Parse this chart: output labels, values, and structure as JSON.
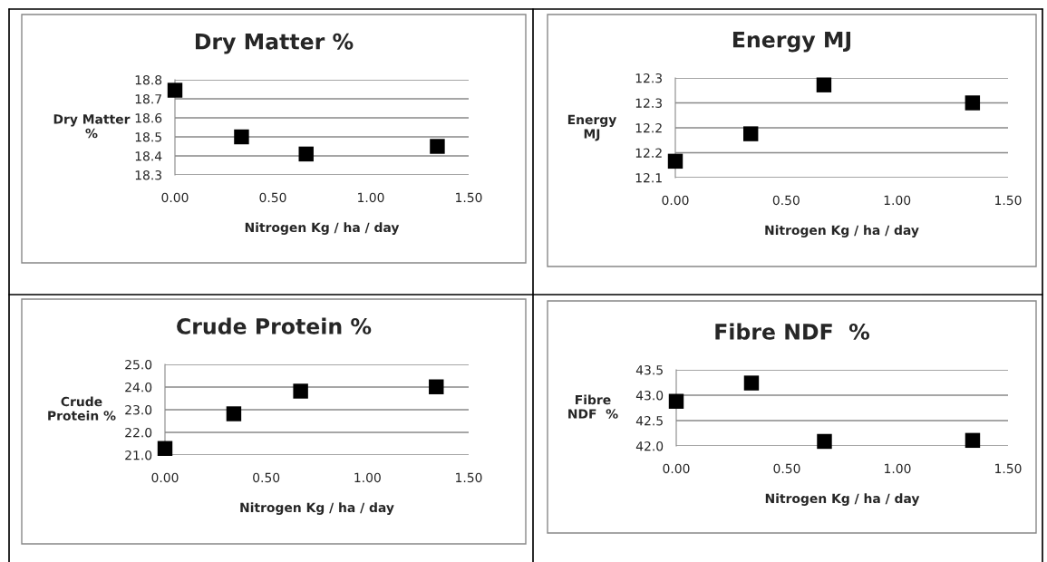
{
  "chart_data": [
    {
      "type": "scatter",
      "title": "Dry Matter %",
      "xlabel": "Nitrogen Kg / ha / day",
      "ylabel": "Dry Matter\n%",
      "x": [
        0,
        0.34,
        0.67,
        1.34
      ],
      "series": [
        {
          "color": "#000000",
          "values": [
            18.745,
            18.5,
            18.41,
            18.45
          ]
        }
      ],
      "xlim": [
        0,
        1.5
      ],
      "xticks": [
        {
          "value": 0,
          "label": "0.00"
        },
        {
          "value": 0.5,
          "label": "0.50"
        },
        {
          "value": 1,
          "label": "1.00"
        },
        {
          "value": 1.5,
          "label": "1.50"
        }
      ],
      "ylim": [
        18.3,
        18.8
      ],
      "yticks": [
        18.3,
        18.4,
        18.5,
        18.6,
        18.7,
        18.8
      ],
      "grid": "y",
      "marker": "square"
    },
    {
      "type": "scatter",
      "title": "Energy MJ",
      "xlabel": "Nitrogen Kg / ha / day",
      "ylabel": "Energy\nMJ",
      "x": [
        0,
        0.34,
        0.67,
        1.34
      ],
      "series": [
        {
          "color": "#000000",
          "values": [
            12.133,
            12.188,
            12.286,
            12.25
          ]
        }
      ],
      "xlim": [
        0,
        1.5
      ],
      "xticks": [
        {
          "value": 0,
          "label": "0.00"
        },
        {
          "value": 0.5,
          "label": "0.50"
        },
        {
          "value": 1,
          "label": "1.00"
        },
        {
          "value": 1.5,
          "label": "1.50"
        }
      ],
      "ylim": [
        12.1,
        12.3
      ],
      "yticks": [
        12.1,
        {
          "value": 12.15,
          "label": "12.2"
        },
        12.2,
        {
          "value": 12.25,
          "label": "12.3"
        },
        12.3
      ],
      "grid": "y",
      "marker": "square"
    },
    {
      "type": "scatter",
      "title": "Crude Protein %",
      "xlabel": "Nitrogen Kg / ha / day",
      "ylabel": "Crude\nProtein %",
      "x": [
        0,
        0.34,
        0.67,
        1.34
      ],
      "series": [
        {
          "color": "#000000",
          "values": [
            21.29,
            22.82,
            23.82,
            24.01
          ]
        }
      ],
      "xlim": [
        0,
        1.5
      ],
      "xticks": [
        {
          "value": 0,
          "label": "0.00"
        },
        {
          "value": 0.5,
          "label": "0.50"
        },
        {
          "value": 1,
          "label": "1.00"
        },
        {
          "value": 1.5,
          "label": "1.50"
        }
      ],
      "ylim": [
        21,
        25
      ],
      "yticks": [
        {
          "value": 21,
          "label": "21.0"
        },
        {
          "value": 22,
          "label": "22.0"
        },
        {
          "value": 23,
          "label": "23.0"
        },
        {
          "value": 24,
          "label": "24.0"
        },
        {
          "value": 25,
          "label": "25.0"
        }
      ],
      "grid": "y",
      "marker": "square"
    },
    {
      "type": "scatter",
      "title": "Fibre NDF  %",
      "xlabel": "Nitrogen Kg / ha / day",
      "ylabel": "Fibre\nNDF  %",
      "x": [
        0,
        0.34,
        0.67,
        1.34
      ],
      "series": [
        {
          "color": "#000000",
          "values": [
            42.88,
            43.24,
            42.09,
            42.11
          ]
        }
      ],
      "xlim": [
        0,
        1.5
      ],
      "xticks": [
        {
          "value": 0,
          "label": "0.00"
        },
        {
          "value": 0.5,
          "label": "0.50"
        },
        {
          "value": 1,
          "label": "1.00"
        },
        {
          "value": 1.5,
          "label": "1.50"
        }
      ],
      "ylim": [
        42,
        43.5
      ],
      "yticks": [
        {
          "value": 42,
          "label": "42.0"
        },
        42.5,
        {
          "value": 43,
          "label": "43.0"
        },
        43.5
      ],
      "grid": "y",
      "marker": "square"
    }
  ]
}
